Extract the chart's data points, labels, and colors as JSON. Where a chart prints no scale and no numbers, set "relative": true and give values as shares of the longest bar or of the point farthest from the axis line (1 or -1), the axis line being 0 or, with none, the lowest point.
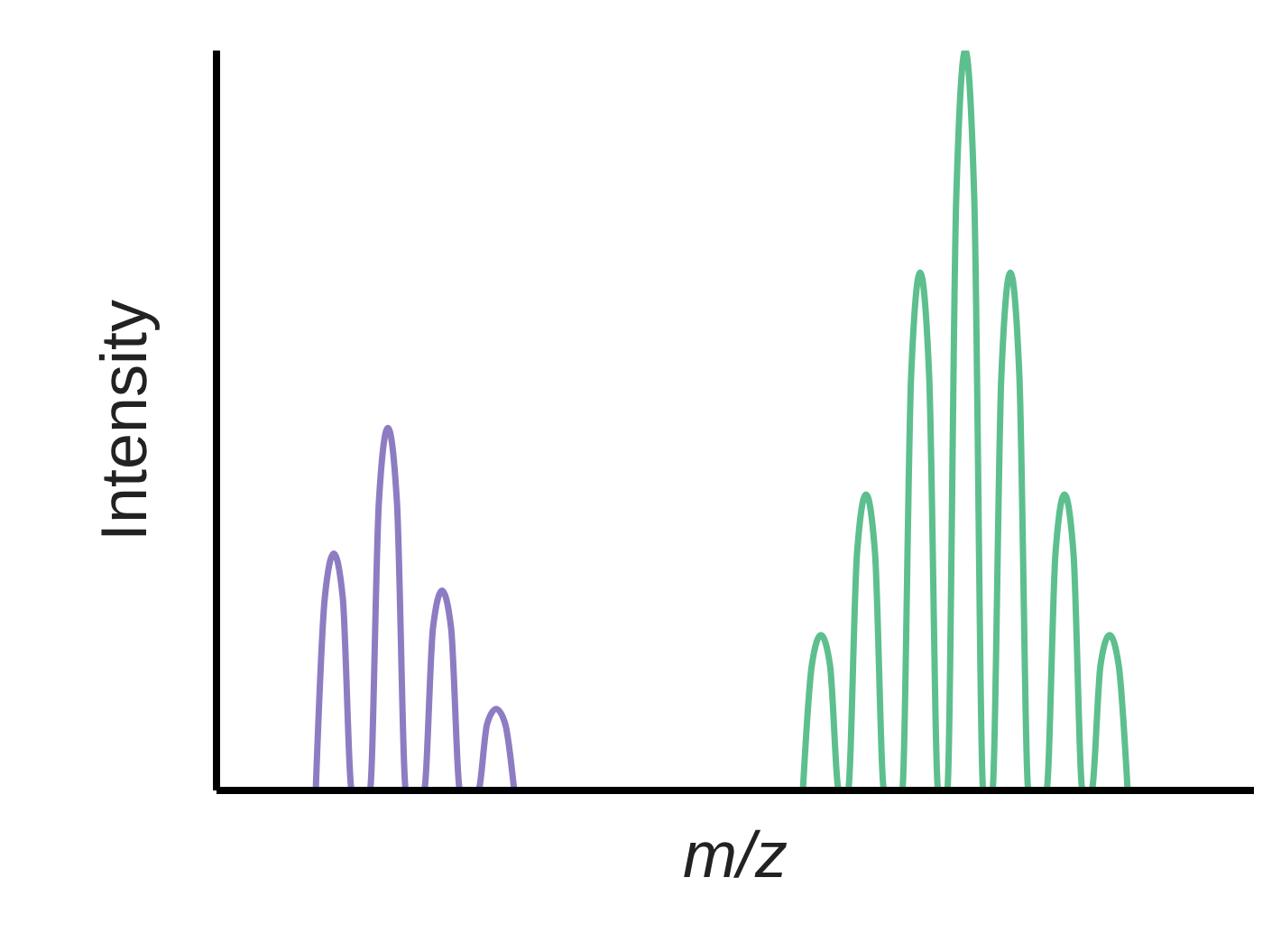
{
  "chart_data": {
    "type": "line",
    "relative": true,
    "xlabel": "m/z",
    "ylabel": "Intensity",
    "marker": "none",
    "grid": false,
    "legend": false,
    "categories": [
      null,
      null,
      null,
      null,
      null,
      null,
      null,
      null,
      null,
      null,
      null,
      null,
      null,
      null,
      null,
      null,
      null,
      null,
      null,
      null,
      null,
      null,
      null,
      null,
      null,
      null,
      null,
      null,
      null,
      null,
      null,
      null,
      null,
      null,
      null,
      null,
      null,
      null,
      null,
      null,
      null,
      null,
      null,
      null,
      null,
      null,
      null,
      null,
      null,
      null,
      null,
      null,
      null,
      null,
      null,
      null,
      null,
      null,
      null,
      null,
      null,
      null,
      null,
      null,
      null,
      null,
      null,
      null,
      null,
      null,
      null,
      null,
      null,
      null,
      null,
      null,
      null,
      null,
      null,
      null,
      null,
      null,
      null,
      null,
      null,
      null,
      null,
      null,
      null,
      null,
      null,
      null,
      null,
      null,
      null,
      null,
      null,
      null,
      null,
      null,
      null,
      null,
      null,
      null,
      null,
      null,
      null,
      null,
      null,
      null,
      null,
      null,
      null,
      null,
      null,
      null
    ],
    "series": [
      {
        "color": "#8e7cc3",
        "values": [
          null,
          null,
          null,
          null,
          null,
          null,
          null,
          null,
          null,
          null,
          null,
          0,
          0.26,
          0.32,
          0.26,
          0,
          0,
          0,
          0.39,
          0.49,
          0.39,
          0,
          0,
          0,
          0.22,
          0.27,
          0.22,
          0,
          0,
          0,
          0.09,
          0.11,
          0.09,
          0,
          null,
          null,
          null,
          null,
          null,
          null,
          null,
          null,
          null,
          null,
          null,
          null,
          null,
          null,
          null,
          null,
          null,
          null,
          null,
          null,
          null,
          null,
          null,
          null,
          null,
          null,
          null,
          null,
          null,
          null,
          null,
          null,
          null,
          null,
          null,
          null,
          null,
          null,
          null,
          null,
          null,
          null,
          null,
          null,
          null,
          null,
          null,
          null,
          null,
          null,
          null,
          null,
          null,
          null,
          null,
          null,
          null,
          null,
          null,
          null,
          null,
          null,
          null,
          null,
          null,
          null,
          null,
          null,
          null,
          null,
          null,
          null,
          null,
          null,
          null,
          null,
          null,
          null,
          null,
          null,
          null,
          null
        ]
      },
      {
        "color": "#5dbf8e",
        "values": [
          null,
          null,
          null,
          null,
          null,
          null,
          null,
          null,
          null,
          null,
          null,
          null,
          null,
          null,
          null,
          null,
          null,
          null,
          null,
          null,
          null,
          null,
          null,
          null,
          null,
          null,
          null,
          null,
          null,
          null,
          null,
          null,
          null,
          null,
          null,
          null,
          null,
          null,
          null,
          null,
          null,
          null,
          null,
          null,
          null,
          null,
          null,
          null,
          null,
          null,
          null,
          null,
          null,
          null,
          null,
          null,
          null,
          null,
          null,
          null,
          null,
          null,
          null,
          null,
          null,
          0,
          0.17,
          0.21,
          0.17,
          0,
          0,
          0.32,
          0.4,
          0.32,
          0,
          0,
          0,
          0.56,
          0.7,
          0.56,
          0,
          0,
          0.8,
          1,
          0.8,
          0,
          0,
          0.56,
          0.7,
          0.56,
          0,
          0,
          0,
          0.32,
          0.4,
          0.32,
          0,
          0,
          0.17,
          0.21,
          0.17,
          0,
          null,
          null,
          null,
          null,
          null,
          null,
          null,
          null,
          null,
          null,
          null,
          null,
          null,
          null
        ]
      }
    ]
  }
}
